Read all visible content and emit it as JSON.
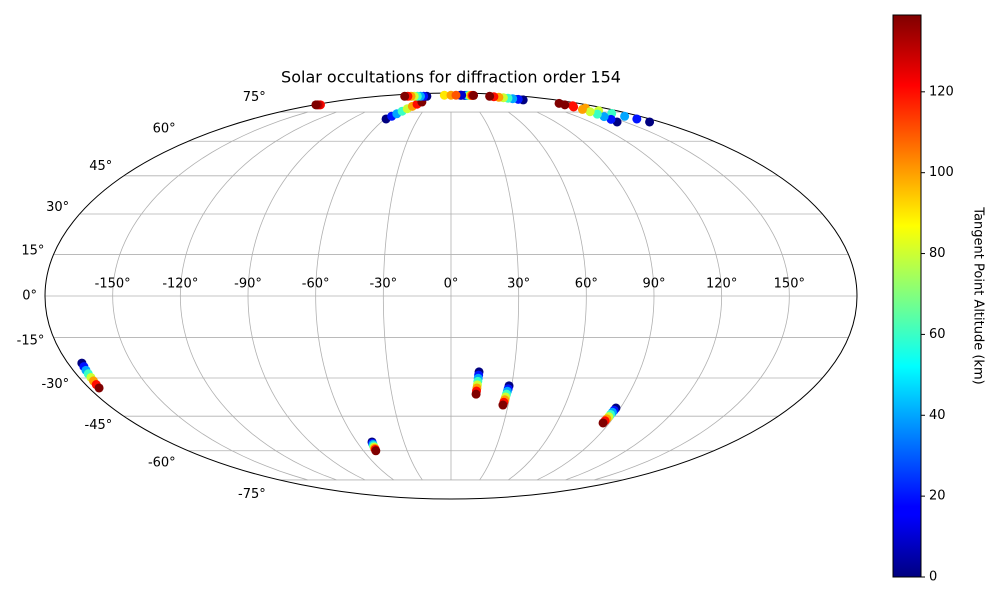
{
  "chart_data": {
    "type": "scatter",
    "projection": "mollweide",
    "title": "Solar occultations for diffraction order 154",
    "colorbar_label": "Tangent Point Altitude (km)",
    "colormap": "jet",
    "clim": [
      0,
      139
    ],
    "cticks": [
      0,
      20,
      40,
      60,
      80,
      100,
      120
    ],
    "grid": true,
    "xticks": [
      {
        "value": -150,
        "label": "-150°"
      },
      {
        "value": -120,
        "label": "-120°"
      },
      {
        "value": -90,
        "label": "-90°"
      },
      {
        "value": -60,
        "label": "-60°"
      },
      {
        "value": -30,
        "label": "-30°"
      },
      {
        "value": 0,
        "label": "0°"
      },
      {
        "value": 30,
        "label": "30°"
      },
      {
        "value": 60,
        "label": "60°"
      },
      {
        "value": 90,
        "label": "90°"
      },
      {
        "value": 120,
        "label": "120°"
      },
      {
        "value": 150,
        "label": "150°"
      }
    ],
    "yticks": [
      {
        "value": -75,
        "label": "-75°"
      },
      {
        "value": -60,
        "label": "-60°"
      },
      {
        "value": -45,
        "label": "-45°"
      },
      {
        "value": -30,
        "label": "-30°"
      },
      {
        "value": -15,
        "label": "-15°"
      },
      {
        "value": 0,
        "label": "0°"
      },
      {
        "value": 15,
        "label": "15°"
      },
      {
        "value": 30,
        "label": "30°"
      },
      {
        "value": 45,
        "label": "45°"
      },
      {
        "value": 60,
        "label": "60°"
      },
      {
        "value": 75,
        "label": "75°"
      }
    ],
    "tracks": [
      {
        "lon": [
          -173.4,
          -173.6,
          -173.9,
          -174.1,
          -174.3,
          -174.5,
          -174.8,
          -175.0
        ],
        "lat": [
          -24.4,
          -25.7,
          -27.1,
          -28.4,
          -29.8,
          -31.1,
          -32.5,
          -33.8
        ],
        "values": [
          0,
          20,
          40,
          60,
          80,
          100,
          120,
          139
        ]
      },
      {
        "lon": [
          -50.4,
          -50.6,
          -50.7,
          -50.9,
          -51.0,
          -51.2,
          -51.3,
          -51.5
        ],
        "lat": [
          -56,
          -56.6,
          -57.1,
          -57.7,
          -58.3,
          -58.9,
          -59.4,
          -60
        ],
        "values": [
          0,
          20,
          40,
          60,
          80,
          100,
          120,
          139
        ]
      },
      {
        "lon": [
          13.4,
          13.3,
          13.2,
          13.1,
          13.0,
          12.9,
          12.8,
          12.7
        ],
        "lat": [
          -27.7,
          -28.9,
          -30.1,
          -31.3,
          -32.6,
          -33.8,
          -35.0,
          -36.2
        ],
        "values": [
          0,
          20,
          40,
          60,
          80,
          100,
          120,
          139
        ]
      },
      {
        "lon": [
          28.7,
          28.5,
          28.3,
          28.1,
          27.9,
          27.7,
          27.5,
          27.3
        ],
        "lat": [
          -33,
          -34.1,
          -35.1,
          -36.2,
          -37.3,
          -38.4,
          -39.4,
          -40.5
        ],
        "values": [
          0,
          20,
          40,
          60,
          80,
          100,
          120,
          139
        ]
      },
      {
        "lon": [
          87.7,
          87.5,
          87.3,
          87.1,
          87.0,
          86.8,
          86.6,
          86.4
        ],
        "lat": [
          -41.7,
          -42.6,
          -43.4,
          -44.3,
          -45.2,
          -46.1,
          -46.9,
          -47.8
        ],
        "values": [
          0,
          20,
          40,
          60,
          80,
          100,
          120,
          139
        ]
      },
      {
        "lon": [
          -58.8,
          -56.6,
          -54.5,
          -52.3,
          -50.2,
          -48.0,
          -45.9,
          -43.7
        ],
        "lat": [
          71.1,
          72.6,
          74.0,
          75.5,
          77.0,
          78.5,
          79.9,
          81.4
        ],
        "values": [
          0,
          20,
          40,
          60,
          80,
          100,
          120,
          139
        ]
      },
      {
        "lon": [
          171,
          168.3,
          165.6,
          162.9,
          160.1,
          157.4,
          154.7,
          152
        ],
        "lat": [
          69.5,
          71.1,
          72.6,
          74.2,
          75.8,
          77.4,
          78.9,
          80.5
        ],
        "values": [
          0,
          20,
          40,
          60,
          80,
          100,
          120,
          139
        ]
      },
      {
        "lon": [
          143,
          144,
          145,
          146,
          147,
          148,
          149,
          150
        ],
        "lat": [
          69.5,
          70.9,
          72.4,
          73.8,
          75.2,
          76.6,
          78.1,
          79.5
        ],
        "values": [
          0,
          20,
          40,
          60,
          80,
          100,
          120,
          139
        ]
      },
      {
        "lon": [
          -60,
          -67.9,
          -75.7,
          -83.6,
          -91.4,
          -99.3,
          -107.1,
          -115
        ],
        "lat": [
          86,
          86,
          86,
          86,
          86,
          86,
          86,
          86
        ],
        "values": [
          0,
          20,
          40,
          60,
          80,
          100,
          120,
          139
        ]
      },
      {
        "lon": [
          124,
          120,
          116,
          112,
          108,
          104,
          100,
          96
        ],
        "lat": [
          83,
          83.4,
          83.9,
          84.3,
          84.7,
          85.1,
          85.6,
          86
        ],
        "values": [
          0,
          20,
          40,
          60,
          80,
          100,
          120,
          139
        ]
      },
      {
        "lon": [
          40,
          43.6,
          47.1,
          50.7,
          54.3,
          57.9,
          61.4,
          65
        ],
        "lat": [
          86.8,
          86.8,
          86.8,
          86.8,
          86.8,
          86.8,
          86.8,
          86.8
        ],
        "values": [
          0,
          20,
          40,
          60,
          80,
          100,
          120,
          139
        ]
      },
      {
        "lon": [
          -172,
          -174,
          -176,
          -178
        ],
        "lat": [
          79.5,
          79.5,
          79.5,
          79.5
        ],
        "values": [
          120,
          126,
          133,
          139
        ]
      },
      {
        "lon": [
          28,
          30,
          32
        ],
        "lat": [
          87,
          87,
          87
        ],
        "values": [
          0,
          5,
          10
        ]
      },
      {
        "lon": [
          -20,
          0,
          15
        ],
        "lat": [
          87,
          87,
          87
        ],
        "values": [
          90,
          100,
          110
        ]
      }
    ]
  }
}
